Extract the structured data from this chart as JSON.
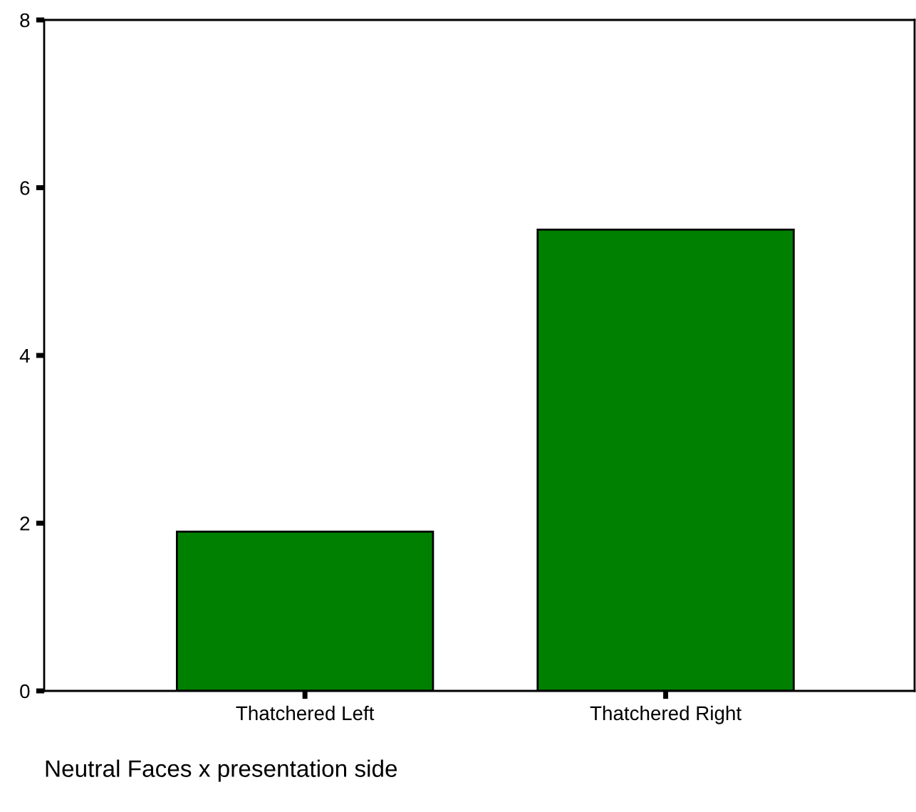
{
  "chart_data": {
    "type": "bar",
    "categories": [
      "Thatchered Left",
      "Thatchered Right"
    ],
    "values": [
      1.9,
      5.5
    ],
    "color": "#008000",
    "ylim": [
      0,
      8
    ],
    "yticks": [
      0,
      2,
      4,
      6,
      8
    ],
    "grid": false,
    "legend": false,
    "annotations": [
      "Neutral Faces x presentation side"
    ]
  }
}
